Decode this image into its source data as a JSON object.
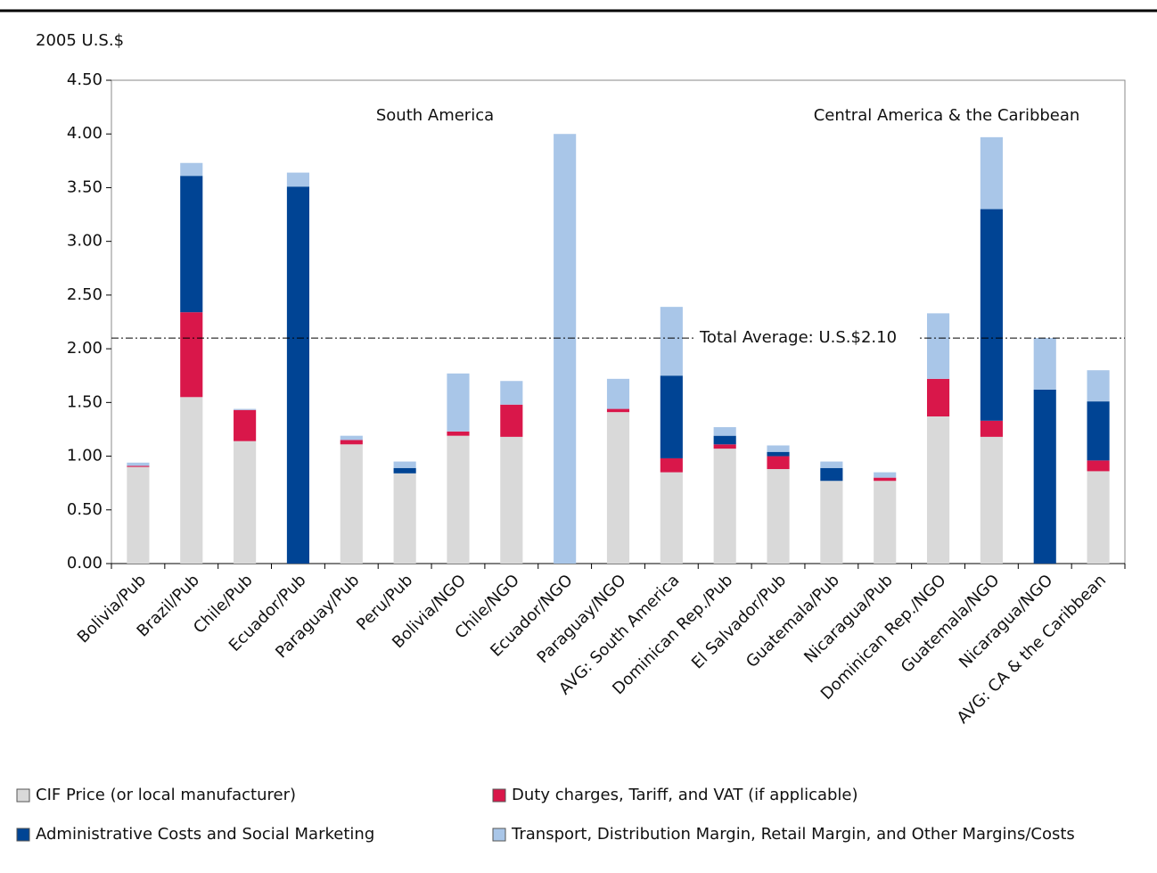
{
  "chart_data": {
    "type": "stacked_bar",
    "y_label": "2005 U.S.$",
    "categories": [
      "Bolivia/Pub",
      "Brazil/Pub",
      "Chile/Pub",
      "Ecuador/Pub",
      "Paraguay/Pub",
      "Peru/Pub",
      "Bolivia/NGO",
      "Chile/NGO",
      "Ecuador/NGO",
      "Paraguay/NGO",
      "AVG: South America",
      "Dominican Rep./Pub",
      "El Salvador/Pub",
      "Guatemala/Pub",
      "Nicaragua/Pub",
      "Dominican Rep./NGO",
      "Guatemala/NGO",
      "Nicaragua/NGO",
      "AVG: CA & the Caribbean"
    ],
    "series": [
      {
        "name": "CIF Price (or local manufacturer)",
        "color": "#d9d9d9",
        "values": [
          0.9,
          1.55,
          1.14,
          0,
          1.11,
          0.84,
          1.19,
          1.18,
          0,
          1.41,
          0.85,
          1.07,
          0.88,
          0.77,
          0.77,
          1.37,
          1.18,
          0,
          0.86
        ]
      },
      {
        "name": "Duty charges, Tariff, and VAT (if applicable)",
        "color": "#d9174a",
        "values": [
          0.01,
          0.79,
          0.29,
          0,
          0.04,
          0,
          0.04,
          0.3,
          0,
          0.03,
          0.13,
          0.04,
          0.12,
          0,
          0.03,
          0.35,
          0.15,
          0,
          0.1
        ]
      },
      {
        "name": "Administrative Costs and Social Marketing",
        "color": "#004494",
        "values": [
          0,
          1.27,
          0,
          3.51,
          0,
          0.05,
          0,
          0,
          0,
          0,
          0.77,
          0.08,
          0.04,
          0.12,
          0,
          0,
          1.97,
          1.62,
          0.55
        ]
      },
      {
        "name": "Transport, Distribution Margin, Retail Margin, and Other Margins/Costs",
        "color": "#a9c6e8",
        "values": [
          0.03,
          0.12,
          0.01,
          0.13,
          0.04,
          0.06,
          0.54,
          0.22,
          4.0,
          0.28,
          0.64,
          0.08,
          0.06,
          0.06,
          0.05,
          0.61,
          0.67,
          0.48,
          0.29
        ]
      }
    ],
    "ylim": [
      0,
      4.5
    ],
    "yticks": [
      {
        "value": 0,
        "label": "0.00"
      },
      {
        "value": 0.5,
        "label": "0.50"
      },
      {
        "value": 1,
        "label": "1.00"
      },
      {
        "value": 1.5,
        "label": "1.50"
      },
      {
        "value": 2,
        "label": "2.00"
      },
      {
        "value": 2.5,
        "label": "2.50"
      },
      {
        "value": 3,
        "label": "3.00"
      },
      {
        "value": 3.5,
        "label": "3.50"
      },
      {
        "value": 4,
        "label": "4.00"
      },
      {
        "value": 4.5,
        "label": "4.50"
      }
    ],
    "reference_line": {
      "value": 2.1,
      "label": "Total Average: U.S.$2.10"
    },
    "annotations": [
      "South America",
      "Central America & the Caribbean"
    ]
  }
}
